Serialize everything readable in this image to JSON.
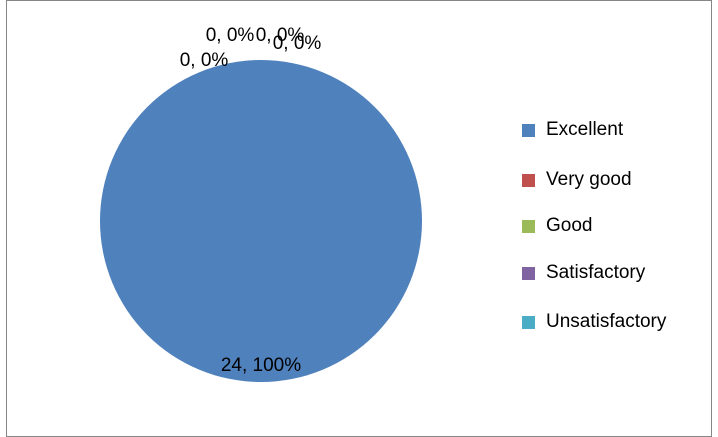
{
  "chart_data": {
    "type": "pie",
    "categories": [
      "Excellent",
      "Very good",
      "Good",
      "Satisfactory",
      "Unsatisfactory"
    ],
    "values": [
      24,
      0,
      0,
      0,
      0
    ],
    "value_labels": [
      "24, 100%",
      "0, 0%",
      "0, 0%",
      "0, 0%",
      "0, 0%"
    ],
    "colors": [
      "#4f81bd",
      "#c0504d",
      "#9bbb59",
      "#8064a2",
      "#4bacc6"
    ],
    "legend": "right"
  }
}
